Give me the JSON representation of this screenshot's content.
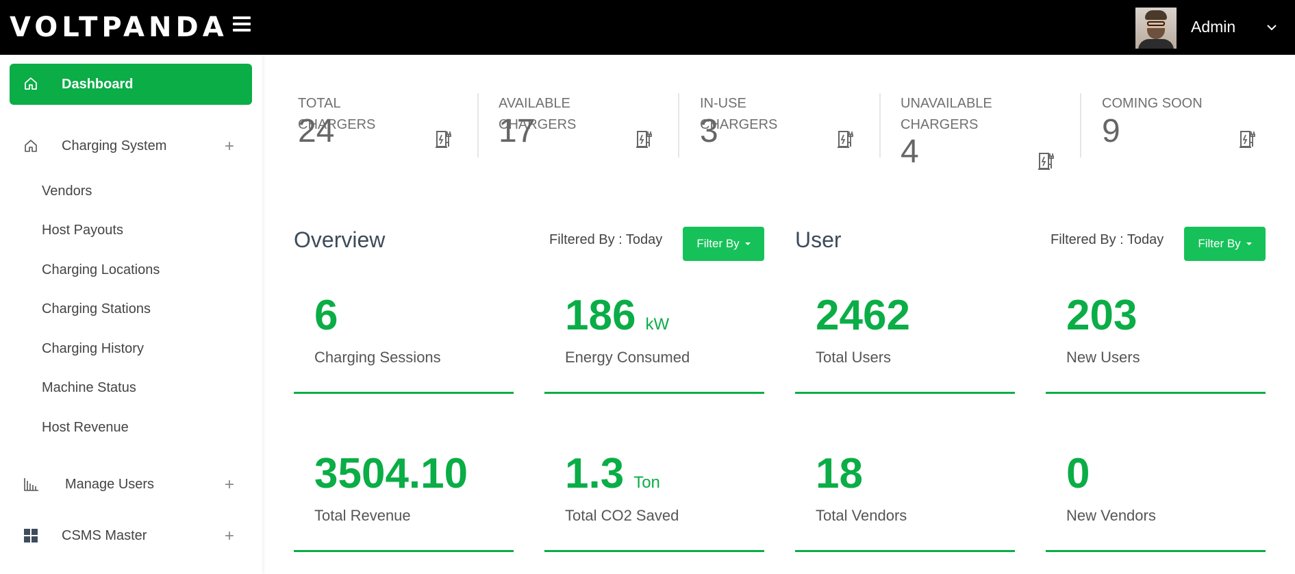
{
  "header": {
    "logo_text": "VOLTPANDA",
    "user_name": "Admin",
    "colors": {
      "bg": "#000000",
      "text": "#ffffff"
    }
  },
  "sidebar": {
    "active": {
      "label": "Dashboard",
      "icon": "home-icon"
    },
    "items": [
      {
        "label": "Charging System",
        "icon": "home-icon",
        "expand": "+"
      },
      {
        "label": "Manage Users",
        "icon": "bar-chart-icon",
        "expand": "+"
      },
      {
        "label": "CSMS Master",
        "icon": "grid-icon",
        "expand": "+"
      }
    ],
    "subitems": [
      "Vendors",
      "Host Payouts",
      "Charging Locations",
      "Charging Stations",
      "Charging History",
      "Machine Status",
      "Host Revenue"
    ]
  },
  "stats": [
    {
      "label": "TOTAL CHARGERS",
      "value": "24",
      "icon": "ev-charger-icon"
    },
    {
      "label": "AVAILABLE CHARGERS",
      "value": "17",
      "icon": "ev-charger-icon"
    },
    {
      "label": "IN-USE CHARGERS",
      "value": "3",
      "icon": "ev-charger-icon"
    },
    {
      "label": "UNAVAILABLE CHARGERS",
      "value": "4",
      "icon": "ev-charger-icon"
    },
    {
      "label": "COMING SOON",
      "value": "9",
      "icon": "ev-charger-icon"
    }
  ],
  "overview": {
    "title": "Overview",
    "filtered_text": "Filtered By : Today",
    "filter_button": "Filter By",
    "cards": [
      {
        "value": "6",
        "unit": "",
        "label": "Charging Sessions"
      },
      {
        "value": "186",
        "unit": "kW",
        "label": "Energy Consumed"
      },
      {
        "value": "3504.10",
        "unit": "",
        "label": "Total Revenue"
      },
      {
        "value": "1.3",
        "unit": "Ton",
        "label": "Total CO2 Saved"
      }
    ]
  },
  "user": {
    "title": "User",
    "filtered_text": "Filtered By : Today",
    "filter_button": "Filter By",
    "cards": [
      {
        "value": "2462",
        "unit": "",
        "label": "Total Users"
      },
      {
        "value": "203",
        "unit": "",
        "label": "New Users"
      },
      {
        "value": "18",
        "unit": "",
        "label": "Total Vendors"
      },
      {
        "value": "0",
        "unit": "",
        "label": "New Vendors"
      }
    ]
  },
  "colors": {
    "accent": "#0aad46",
    "button": "#17c15a",
    "title": "#3e4b5b"
  }
}
